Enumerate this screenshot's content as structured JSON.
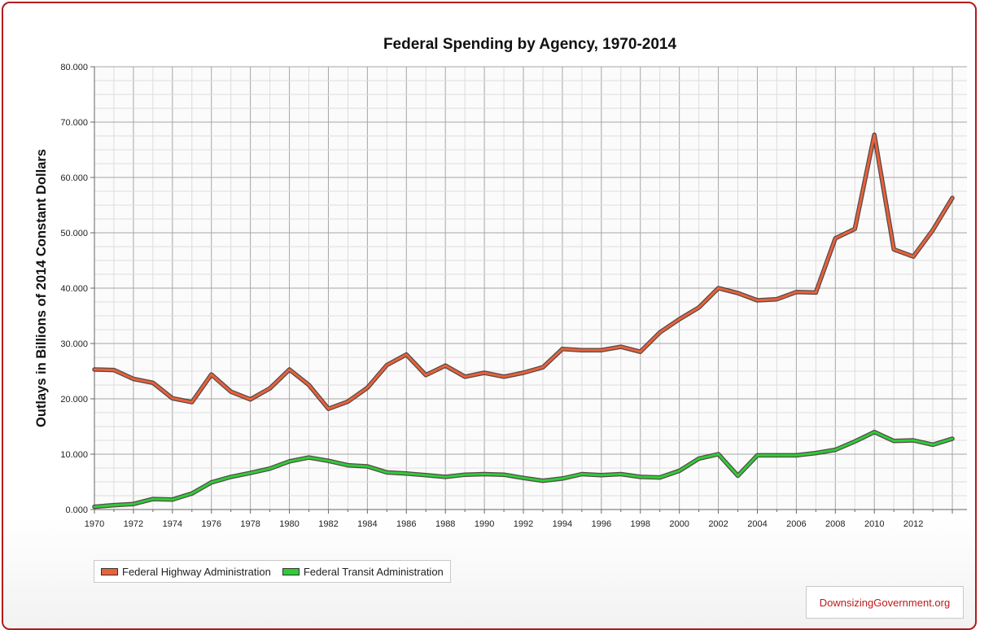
{
  "chart_data": {
    "type": "line",
    "title": "Federal Spending by Agency, 1970-2014",
    "xlabel": "",
    "ylabel": "Outlays in Billions of 2014 Constant Dollars",
    "ylim": [
      0,
      80
    ],
    "y_ticks": [
      {
        "value": 0,
        "label": "0.000"
      },
      {
        "value": 10,
        "label": "10.000"
      },
      {
        "value": 20,
        "label": "20.000"
      },
      {
        "value": 30,
        "label": "30.000"
      },
      {
        "value": 40,
        "label": "40.000"
      },
      {
        "value": 50,
        "label": "50.000"
      },
      {
        "value": 60,
        "label": "60.000"
      },
      {
        "value": 70,
        "label": "70.000"
      },
      {
        "value": 80,
        "label": "80.000"
      }
    ],
    "x": [
      1970,
      1971,
      1972,
      1973,
      1974,
      1975,
      1976,
      1977,
      1978,
      1979,
      1980,
      1981,
      1982,
      1983,
      1984,
      1985,
      1986,
      1987,
      1988,
      1989,
      1990,
      1991,
      1992,
      1993,
      1994,
      1995,
      1996,
      1997,
      1998,
      1999,
      2000,
      2001,
      2002,
      2003,
      2004,
      2005,
      2006,
      2007,
      2008,
      2009,
      2010,
      2011,
      2012,
      2013,
      2014
    ],
    "x_tick_labels": [
      "1970",
      "1972",
      "1974",
      "1976",
      "1978",
      "1980",
      "1982",
      "1984",
      "1986",
      "1988",
      "1990",
      "1992",
      "1994",
      "1996",
      "1998",
      "2000",
      "2002",
      "2004",
      "2006",
      "2008",
      "2010",
      "2012"
    ],
    "grid": true,
    "legend_position": "bottom-left",
    "series": [
      {
        "name": "Federal Highway Administration",
        "color": "#e8623a",
        "values": [
          25.3,
          25.2,
          23.6,
          22.9,
          20.1,
          19.4,
          24.4,
          21.3,
          19.9,
          21.9,
          25.3,
          22.5,
          18.2,
          19.5,
          22.0,
          26.1,
          28.0,
          24.3,
          26.0,
          24.0,
          24.7,
          24.0,
          24.7,
          25.7,
          29.0,
          28.8,
          28.8,
          29.4,
          28.5,
          32.0,
          34.4,
          36.5,
          40.0,
          39.1,
          37.8,
          38.0,
          39.3,
          39.2,
          49.0,
          50.7,
          67.7,
          47.0,
          45.7,
          50.5,
          56.3
        ]
      },
      {
        "name": "Federal Transit Administration",
        "color": "#2fcc38",
        "values": [
          0.5,
          0.8,
          1.0,
          1.9,
          1.8,
          2.9,
          4.9,
          5.9,
          6.6,
          7.4,
          8.7,
          9.4,
          8.8,
          8.0,
          7.8,
          6.7,
          6.5,
          6.2,
          5.9,
          6.3,
          6.4,
          6.3,
          5.7,
          5.2,
          5.6,
          6.4,
          6.2,
          6.4,
          5.9,
          5.8,
          7.0,
          9.2,
          10.0,
          6.1,
          9.8,
          9.8,
          9.8,
          10.2,
          10.8,
          12.3,
          14.0,
          12.4,
          12.5,
          11.7,
          12.8
        ]
      }
    ]
  },
  "credit": "DownsizingGovernment.org"
}
